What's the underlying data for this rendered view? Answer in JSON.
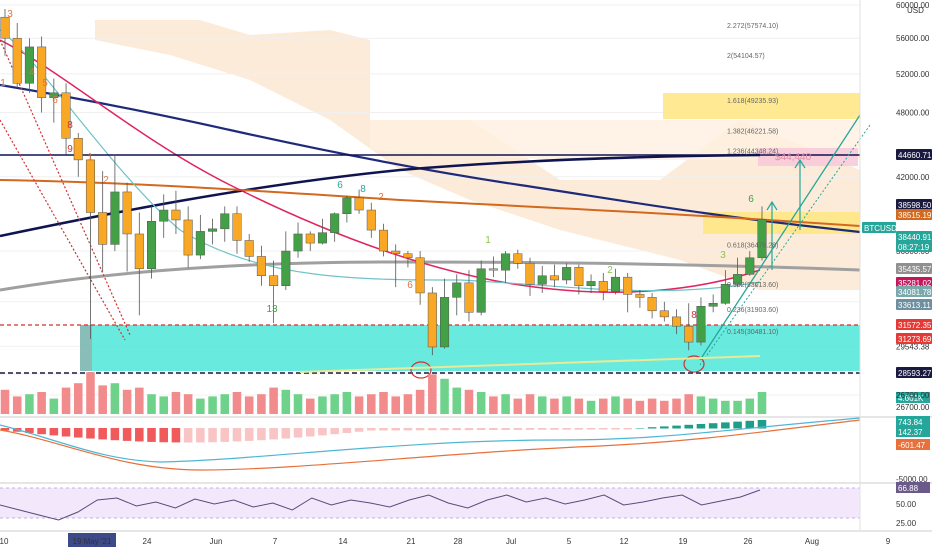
{
  "currency": "USD",
  "chart_data": [
    {
      "type": "candlestick",
      "symbol": "BTCUSD",
      "y_axis_scale": "log",
      "y_axis_position": "right",
      "ylim": [
        26700,
        60000
      ],
      "y_ticks": [
        60000,
        56000,
        52000,
        48000,
        42000,
        36000,
        32400,
        29543.38,
        27900,
        26700
      ],
      "x_tick_labels": [
        "10",
        "19 May '21",
        "24",
        "Jun",
        "7",
        "14",
        "21",
        "28",
        "Jul",
        "5",
        "12",
        "19",
        "26",
        "Aug",
        "9"
      ],
      "candles": [
        {
          "o": 58500,
          "h": 59500,
          "l": 54000,
          "c": 56000
        },
        {
          "o": 56000,
          "h": 57800,
          "l": 50500,
          "c": 51000
        },
        {
          "o": 51000,
          "h": 56000,
          "l": 50000,
          "c": 55000
        },
        {
          "o": 55000,
          "h": 56200,
          "l": 48000,
          "c": 49500
        },
        {
          "o": 49500,
          "h": 51500,
          "l": 47000,
          "c": 50000
        },
        {
          "o": 50000,
          "h": 51000,
          "l": 44000,
          "c": 45500
        },
        {
          "o": 45500,
          "h": 46000,
          "l": 42000,
          "c": 43500
        },
        {
          "o": 43500,
          "h": 44000,
          "l": 30000,
          "c": 39000
        },
        {
          "o": 39000,
          "h": 42500,
          "l": 34500,
          "c": 36500
        },
        {
          "o": 36500,
          "h": 44000,
          "l": 36000,
          "c": 40700
        },
        {
          "o": 40700,
          "h": 41500,
          "l": 34500,
          "c": 37300
        },
        {
          "o": 37300,
          "h": 39000,
          "l": 31500,
          "c": 34700
        },
        {
          "o": 34700,
          "h": 39500,
          "l": 34000,
          "c": 38300
        },
        {
          "o": 38300,
          "h": 40500,
          "l": 37000,
          "c": 39200
        },
        {
          "o": 39200,
          "h": 40800,
          "l": 37300,
          "c": 38400
        },
        {
          "o": 38400,
          "h": 39500,
          "l": 34800,
          "c": 35700
        },
        {
          "o": 35700,
          "h": 38800,
          "l": 35400,
          "c": 37500
        },
        {
          "o": 37500,
          "h": 38500,
          "l": 36500,
          "c": 37700
        },
        {
          "o": 37700,
          "h": 39500,
          "l": 36700,
          "c": 38900
        },
        {
          "o": 38900,
          "h": 39500,
          "l": 35800,
          "c": 36800
        },
        {
          "o": 36800,
          "h": 37300,
          "l": 35200,
          "c": 35600
        },
        {
          "o": 35600,
          "h": 36400,
          "l": 33500,
          "c": 34200
        },
        {
          "o": 34200,
          "h": 35300,
          "l": 31000,
          "c": 33500
        },
        {
          "o": 33500,
          "h": 37500,
          "l": 33200,
          "c": 36000
        },
        {
          "o": 36000,
          "h": 38200,
          "l": 35500,
          "c": 37300
        },
        {
          "o": 37300,
          "h": 37500,
          "l": 36000,
          "c": 36600
        },
        {
          "o": 36600,
          "h": 38500,
          "l": 36500,
          "c": 37400
        },
        {
          "o": 37400,
          "h": 39000,
          "l": 36700,
          "c": 38900
        },
        {
          "o": 38900,
          "h": 40400,
          "l": 38200,
          "c": 40200
        },
        {
          "o": 40200,
          "h": 40900,
          "l": 38900,
          "c": 39200
        },
        {
          "o": 39200,
          "h": 39800,
          "l": 37000,
          "c": 37600
        },
        {
          "o": 37600,
          "h": 38100,
          "l": 35600,
          "c": 36000
        },
        {
          "o": 36000,
          "h": 36500,
          "l": 33400,
          "c": 35800
        },
        {
          "o": 35800,
          "h": 36000,
          "l": 34800,
          "c": 35500
        },
        {
          "o": 35500,
          "h": 36000,
          "l": 32200,
          "c": 33000
        },
        {
          "o": 33000,
          "h": 33400,
          "l": 29000,
          "c": 29500
        },
        {
          "o": 29500,
          "h": 34000,
          "l": 29400,
          "c": 32700
        },
        {
          "o": 32700,
          "h": 34300,
          "l": 31500,
          "c": 33700
        },
        {
          "o": 33700,
          "h": 34600,
          "l": 31100,
          "c": 31700
        },
        {
          "o": 31700,
          "h": 35300,
          "l": 31500,
          "c": 34700
        },
        {
          "o": 34700,
          "h": 35600,
          "l": 34100,
          "c": 34600
        },
        {
          "o": 34600,
          "h": 36000,
          "l": 33700,
          "c": 35800
        },
        {
          "o": 35800,
          "h": 36100,
          "l": 34700,
          "c": 35100
        },
        {
          "o": 35100,
          "h": 35500,
          "l": 32800,
          "c": 33600
        },
        {
          "o": 33600,
          "h": 34900,
          "l": 33000,
          "c": 34200
        },
        {
          "o": 34200,
          "h": 35000,
          "l": 33400,
          "c": 33900
        },
        {
          "o": 33900,
          "h": 35100,
          "l": 33600,
          "c": 34800
        },
        {
          "o": 34800,
          "h": 35000,
          "l": 32900,
          "c": 33500
        },
        {
          "o": 33500,
          "h": 34300,
          "l": 33000,
          "c": 33800
        },
        {
          "o": 33800,
          "h": 34400,
          "l": 32500,
          "c": 33100
        },
        {
          "o": 33100,
          "h": 34700,
          "l": 32900,
          "c": 34100
        },
        {
          "o": 34100,
          "h": 34400,
          "l": 31700,
          "c": 32900
        },
        {
          "o": 32900,
          "h": 33200,
          "l": 32000,
          "c": 32700
        },
        {
          "o": 32700,
          "h": 33000,
          "l": 31300,
          "c": 31800
        },
        {
          "o": 31800,
          "h": 32400,
          "l": 31100,
          "c": 31400
        },
        {
          "o": 31400,
          "h": 31900,
          "l": 30300,
          "c": 30800
        },
        {
          "o": 30800,
          "h": 32300,
          "l": 29300,
          "c": 29800
        },
        {
          "o": 29800,
          "h": 32700,
          "l": 29600,
          "c": 32100
        },
        {
          "o": 32100,
          "h": 32900,
          "l": 31700,
          "c": 32300
        },
        {
          "o": 32300,
          "h": 34600,
          "l": 32200,
          "c": 33600
        },
        {
          "o": 33600,
          "h": 35500,
          "l": 33400,
          "c": 34300
        },
        {
          "o": 34300,
          "h": 36000,
          "l": 34200,
          "c": 35500
        },
        {
          "o": 35500,
          "h": 39500,
          "l": 35300,
          "c": 38440
        }
      ],
      "price_tags": [
        {
          "label": "44660.71",
          "color": "#1a1a40"
        },
        {
          "label": "38598.50",
          "color": "#1a1a40"
        },
        {
          "label": "38515.19",
          "color": "#d2691e"
        },
        {
          "label": "BTCUSD",
          "color": "#26a69a"
        },
        {
          "label": "38440.91",
          "color": "#26a69a"
        },
        {
          "label": "08:27:19",
          "color": "#26a69a"
        },
        {
          "label": "35435.57",
          "color": "#909090"
        },
        {
          "label": "35281.02",
          "color": "#c2185b"
        },
        {
          "label": "34081.78",
          "color": "#7aa8ad"
        },
        {
          "label": "33613.11",
          "color": "#6d8fa0"
        },
        {
          "label": "31572.35",
          "color": "#e53935"
        },
        {
          "label": "31273.69",
          "color": "#e53935"
        },
        {
          "label": "28593.27",
          "color": "#1a1a40"
        }
      ],
      "fib_labels": [
        {
          "label": "2.272(57574.10)",
          "y": 57574
        },
        {
          "label": "2(54104.57)",
          "y": 54104
        },
        {
          "label": "1.618(49235.93)",
          "y": 49236
        },
        {
          "label": "1.382(46221.58)",
          "y": 46222
        },
        {
          "label": "1.236(44348.24)",
          "y": 44348
        },
        {
          "label": "0.618(36476.28)",
          "y": 36476
        },
        {
          "label": "0.382(33613.60)",
          "y": 33614
        },
        {
          "label": "0.236(31903.60)",
          "y": 31904
        },
        {
          "label": "0.145(30481.10)",
          "y": 30481
        }
      ],
      "target_label": "$44,440",
      "volume_tags": [
        {
          "label": "4.661K",
          "color": "#26a69a"
        }
      ],
      "macd_tags": [
        {
          "label": "743.84",
          "color": "#26a69a"
        },
        {
          "label": "142.37",
          "color": "#26a69a"
        },
        {
          "label": "-601.47",
          "color": "#e8703a"
        }
      ],
      "macd_axis_label": "-5000.00",
      "rsi_value": {
        "label": "66.88",
        "color": "#6a5a8a"
      },
      "rsi_ticks": [
        50,
        25
      ],
      "rsi_axis_label": "50.00",
      "rsi_axis_label2": "25.00",
      "volume_axis_label": "26700.00",
      "sequential_counts": [
        {
          "t": "3",
          "c": "#e8703a"
        },
        {
          "t": "1",
          "c": "#e8703a"
        },
        {
          "t": "4",
          "c": "#e8703a"
        },
        {
          "t": "5",
          "c": "#e8703a"
        },
        {
          "t": "6",
          "c": "#e8703a"
        },
        {
          "t": "8",
          "c": "#d32f2f"
        },
        {
          "t": "9",
          "c": "#d32f2f"
        },
        {
          "t": "1",
          "c": "#e8703a"
        },
        {
          "t": "2",
          "c": "#e8703a"
        },
        {
          "t": "6",
          "c": "#26a69a"
        },
        {
          "t": "8",
          "c": "#26a69a"
        },
        {
          "t": "2",
          "c": "#e8703a"
        },
        {
          "t": "6",
          "c": "#e8703a"
        },
        {
          "t": "1",
          "c": "#8bc34a"
        },
        {
          "t": "2",
          "c": "#8bc34a"
        },
        {
          "t": "3",
          "c": "#8bc34a"
        },
        {
          "t": "6",
          "c": "#43a047"
        },
        {
          "t": "13",
          "c": "#43a047"
        },
        {
          "t": "8",
          "c": "#d32f2f"
        }
      ]
    }
  ]
}
